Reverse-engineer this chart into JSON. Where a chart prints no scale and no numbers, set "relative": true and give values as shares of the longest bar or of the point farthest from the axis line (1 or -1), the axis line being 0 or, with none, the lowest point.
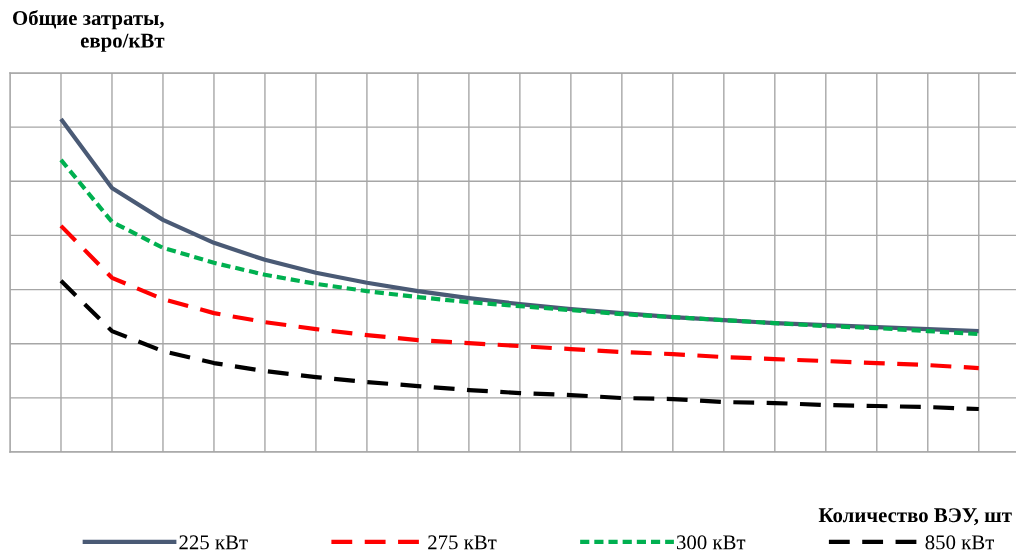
{
  "chart_data": {
    "type": "line",
    "relative": true,
    "xlabel": "Количество ВЭУ, шт",
    "ylabel": "Общие затраты,\nевро/кВт",
    "grid": true,
    "legend": "bottom",
    "tick_labels": false,
    "marker": "none",
    "categories": [
      null,
      null,
      null,
      null,
      null,
      null,
      null,
      null,
      null,
      null,
      null,
      null,
      null,
      null,
      null,
      null,
      null,
      null,
      null
    ],
    "series": [
      {
        "name": "225 кВт",
        "color": "#4a5a75",
        "line_style": "solid",
        "values": [
          1.0,
          0.793,
          0.697,
          0.628,
          0.577,
          0.538,
          0.508,
          0.483,
          0.462,
          0.444,
          0.429,
          0.417,
          0.405,
          0.396,
          0.387,
          0.381,
          0.375,
          0.369,
          0.363
        ]
      },
      {
        "name": "275 кВт",
        "color": "#ff0000",
        "line_style": "dashed",
        "values": [
          0.679,
          0.523,
          0.459,
          0.417,
          0.39,
          0.369,
          0.351,
          0.336,
          0.327,
          0.318,
          0.309,
          0.3,
          0.294,
          0.285,
          0.279,
          0.273,
          0.267,
          0.261,
          0.252
        ]
      },
      {
        "name": "300 кВт",
        "color": "#00b050",
        "line_style": "dotted",
        "values": [
          0.877,
          0.691,
          0.613,
          0.568,
          0.532,
          0.505,
          0.483,
          0.465,
          0.45,
          0.438,
          0.426,
          0.414,
          0.405,
          0.396,
          0.387,
          0.378,
          0.372,
          0.363,
          0.354
        ]
      },
      {
        "name": "850 кВт",
        "color": "#000000",
        "line_style": "dashed",
        "values": [
          0.514,
          0.363,
          0.303,
          0.267,
          0.243,
          0.225,
          0.21,
          0.198,
          0.186,
          0.177,
          0.171,
          0.162,
          0.159,
          0.15,
          0.147,
          0.141,
          0.138,
          0.135,
          0.129
        ]
      }
    ]
  }
}
